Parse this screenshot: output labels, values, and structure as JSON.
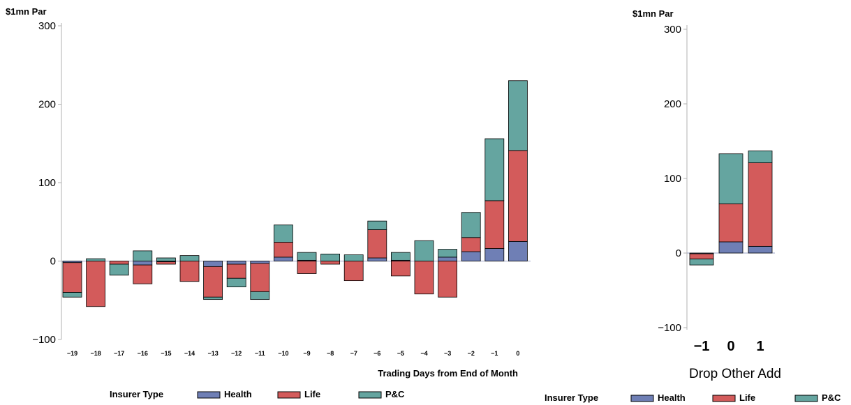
{
  "chart_data": [
    {
      "type": "bar",
      "stacked": true,
      "title": "",
      "ylabel": "$1mn Par",
      "xlabel": "Trading Days from End of Month",
      "ylim": [
        -100,
        300
      ],
      "yticks": [
        -100,
        0,
        100,
        200,
        300
      ],
      "categories": [
        "-19",
        "-18",
        "-17",
        "-16",
        "-15",
        "-14",
        "-13",
        "-12",
        "-11",
        "-10",
        "-9",
        "-8",
        "-7",
        "-6",
        "-5",
        "-4",
        "-3",
        "-2",
        "-1",
        "0"
      ],
      "series": [
        {
          "name": "Health",
          "color": "#6f7fb5",
          "values": [
            -2,
            0,
            0,
            -5,
            -1,
            0,
            -7,
            -4,
            -3,
            5,
            1,
            0,
            0,
            4,
            1,
            0,
            5,
            12,
            16,
            25
          ]
        },
        {
          "name": "Life",
          "color": "#d35b5b",
          "values": [
            -38,
            -58,
            -4,
            -24,
            -3,
            -26,
            -39,
            -18,
            -36,
            19,
            -16,
            -4,
            -25,
            36,
            -19,
            -42,
            -46,
            18,
            61,
            116
          ]
        },
        {
          "name": "P&C",
          "color": "#65a5a0",
          "values": [
            -6,
            3,
            -14,
            13,
            4,
            7,
            -3,
            -11,
            -10,
            22,
            10,
            9,
            8,
            11,
            10,
            26,
            10,
            32,
            79,
            89
          ]
        }
      ],
      "legend": {
        "title": "Insurer Type",
        "position": "bottom",
        "entries": [
          "Health",
          "Life",
          "P&C"
        ]
      }
    },
    {
      "type": "bar",
      "stacked": true,
      "title": "",
      "ylabel": "$1mn Par",
      "xlabel": "Drop Other Add",
      "ylim": [
        -100,
        300
      ],
      "yticks": [
        -100,
        0,
        100,
        200,
        300
      ],
      "categories": [
        "−1",
        "0",
        "1"
      ],
      "series": [
        {
          "name": "Health",
          "color": "#6f7fb5",
          "values": [
            -1,
            15,
            9
          ]
        },
        {
          "name": "Life",
          "color": "#d35b5b",
          "values": [
            -7,
            51,
            112
          ]
        },
        {
          "name": "P&C",
          "color": "#65a5a0",
          "values": [
            -8,
            67,
            16
          ]
        }
      ],
      "legend": {
        "title": "Insurer Type",
        "position": "bottom",
        "entries": [
          "Health",
          "Life",
          "P&C"
        ]
      }
    }
  ]
}
